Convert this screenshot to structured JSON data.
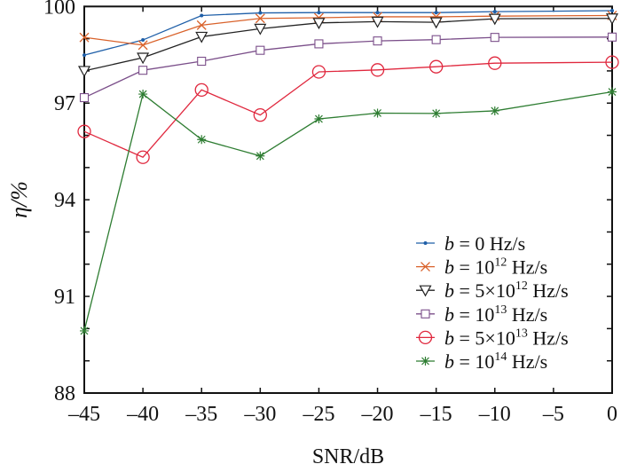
{
  "chart_data": {
    "type": "line",
    "title": "",
    "xlabel": "SNR/dB",
    "ylabel": "η/%",
    "xlim": [
      -45,
      0
    ],
    "ylim": [
      88,
      100
    ],
    "xticks": [
      "-45",
      "-40",
      "-35",
      "-30",
      "-25",
      "-20",
      "-15",
      "-10",
      "-5",
      "0"
    ],
    "yticks": [
      "88",
      "91",
      "94",
      "97",
      "100"
    ],
    "grid": false,
    "legend_position": "bottom-right",
    "x": [
      -45,
      -40,
      -35,
      -30,
      -25,
      -20,
      -15,
      -10,
      0
    ],
    "series": [
      {
        "name": "b = 0 Hz/s",
        "b": "b",
        "rest": " = 0 Hz/s",
        "sup": "",
        "tail": "",
        "color": "#1f5fa8",
        "marker": "dot",
        "values": [
          98.49,
          98.96,
          99.72,
          99.8,
          99.81,
          99.81,
          99.81,
          99.84,
          99.87
        ]
      },
      {
        "name": "b = 10^12 Hz/s",
        "b": "b",
        "rest": " = 10",
        "sup": "12",
        "tail": " Hz/s",
        "color": "#d9622b",
        "marker": "x",
        "values": [
          99.04,
          98.8,
          99.42,
          99.63,
          99.65,
          99.68,
          99.68,
          99.7,
          99.72
        ]
      },
      {
        "name": "b = 5×10^12 Hz/s",
        "b": "b",
        "rest": " = 5×10",
        "sup": "12",
        "tail": " Hz/s",
        "color": "#222222",
        "marker": "triangle-down",
        "values": [
          98.0,
          98.41,
          99.06,
          99.31,
          99.49,
          99.53,
          99.51,
          99.62,
          99.63
        ]
      },
      {
        "name": "b = 10^13 Hz/s",
        "b": "b",
        "rest": " = 10",
        "sup": "13",
        "tail": " Hz/s",
        "color": "#7b4f8a",
        "marker": "square",
        "values": [
          97.17,
          98.02,
          98.3,
          98.64,
          98.84,
          98.93,
          98.97,
          99.04,
          99.05
        ]
      },
      {
        "name": "b = 5×10^13 Hz/s",
        "b": "b",
        "rest": " = 5×10",
        "sup": "13",
        "tail": " Hz/s",
        "color": "#e0283e",
        "marker": "circle",
        "values": [
          96.12,
          95.32,
          97.41,
          96.63,
          97.97,
          98.03,
          98.13,
          98.24,
          98.27
        ]
      },
      {
        "name": "b = 10^14 Hz/s",
        "b": "b",
        "rest": " = 10",
        "sup": "14",
        "tail": " Hz/s",
        "color": "#2e7d32",
        "marker": "asterisk",
        "values": [
          89.93,
          97.28,
          95.87,
          95.36,
          96.51,
          96.69,
          96.68,
          96.76,
          97.35
        ]
      }
    ]
  }
}
